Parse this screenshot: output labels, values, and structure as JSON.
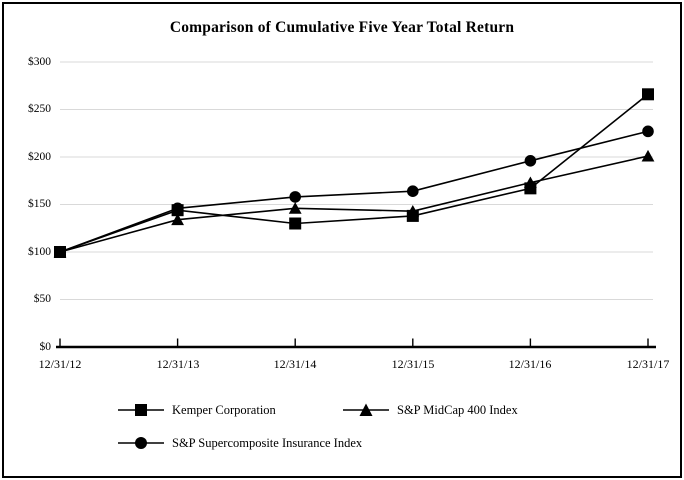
{
  "chart_data": {
    "type": "line",
    "title": "Comparison of Cumulative Five Year Total Return",
    "x_labels": [
      "12/31/12",
      "12/31/13",
      "12/31/14",
      "12/31/15",
      "12/31/16",
      "12/31/17"
    ],
    "y_ticks": [
      300,
      250,
      200,
      150,
      100,
      50,
      0
    ],
    "y_tick_labels": [
      "$300",
      "$250",
      "$200",
      "$150",
      "$100",
      "$50",
      "$0"
    ],
    "ylim": [
      0,
      300
    ],
    "grid": "horizontal-only",
    "legend_position": "bottom",
    "series": [
      {
        "name": "Kemper Corporation",
        "marker": "square",
        "values": [
          100,
          144,
          130,
          138,
          167,
          266
        ]
      },
      {
        "name": "S&P MidCap 400 Index",
        "marker": "triangle",
        "values": [
          100,
          134,
          146,
          143,
          173,
          201
        ]
      },
      {
        "name": "S&P Supercomposite Insurance Index",
        "marker": "circle",
        "values": [
          100,
          146,
          158,
          164,
          196,
          227
        ]
      }
    ],
    "colors": {
      "series": "#000000",
      "grid": "#d9d9d9",
      "axis": "#000000",
      "background": "#ffffff",
      "border": "#000000"
    }
  }
}
